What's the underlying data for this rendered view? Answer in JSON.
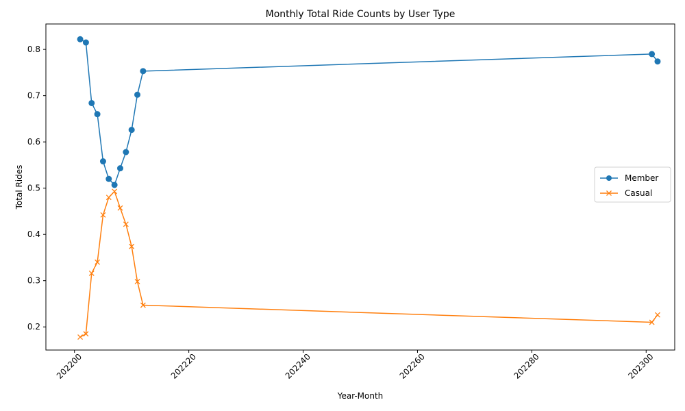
{
  "chart_data": {
    "type": "line",
    "title": "Monthly Total Ride Counts by User Type",
    "xlabel": "Year-Month",
    "ylabel": "Total Rides",
    "xlim": [
      202195,
      202305
    ],
    "ylim": [
      0.15,
      0.855
    ],
    "x_ticks": [
      202200,
      202220,
      202240,
      202260,
      202280,
      202300
    ],
    "x_tick_labels": [
      "202200",
      "202220",
      "202240",
      "202260",
      "202280",
      "202300"
    ],
    "y_ticks": [
      0.2,
      0.3,
      0.4,
      0.5,
      0.6,
      0.7,
      0.8
    ],
    "y_tick_labels": [
      "0.2",
      "0.3",
      "0.4",
      "0.5",
      "0.6",
      "0.7",
      "0.8"
    ],
    "grid": false,
    "legend_position": "center-right",
    "x": [
      202201,
      202202,
      202203,
      202204,
      202205,
      202206,
      202207,
      202208,
      202209,
      202210,
      202211,
      202212,
      202301,
      202302
    ],
    "series": [
      {
        "name": "Member",
        "color": "#1f77b4",
        "marker": "circle",
        "values": [
          0.822,
          0.815,
          0.684,
          0.66,
          0.558,
          0.52,
          0.507,
          0.543,
          0.578,
          0.626,
          0.702,
          0.753,
          0.79,
          0.774
        ]
      },
      {
        "name": "Casual",
        "color": "#ff7f0e",
        "marker": "x",
        "values": [
          0.178,
          0.185,
          0.316,
          0.34,
          0.442,
          0.48,
          0.493,
          0.457,
          0.422,
          0.374,
          0.298,
          0.247,
          0.21,
          0.226
        ]
      }
    ]
  }
}
